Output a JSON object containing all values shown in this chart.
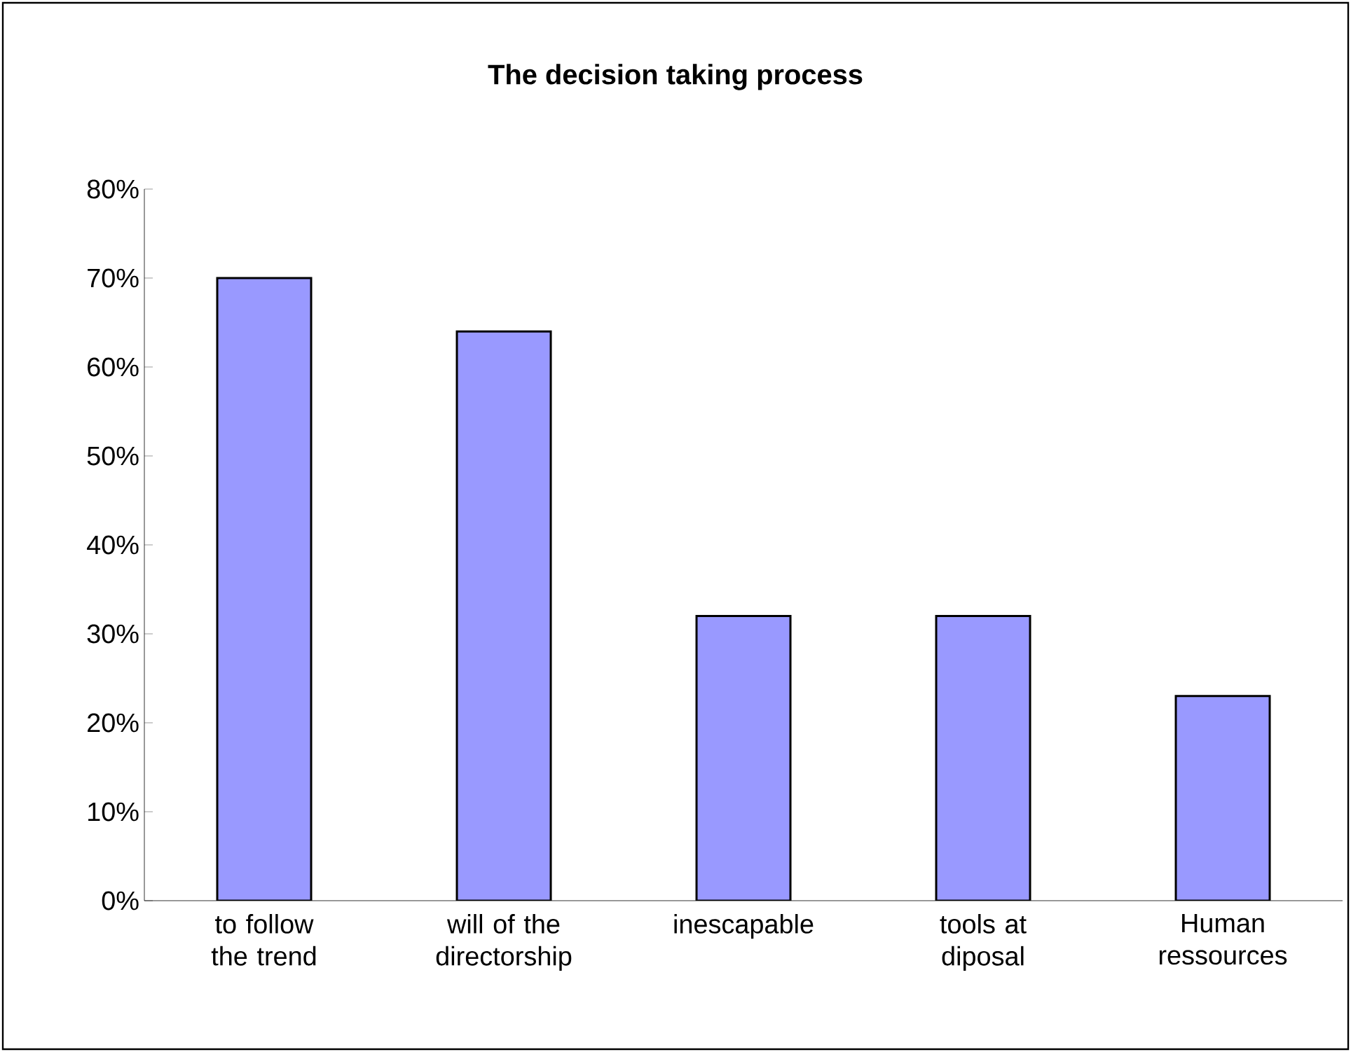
{
  "chart_data": {
    "type": "bar",
    "title": "The decision taking process",
    "categories": [
      "to follow the trend",
      "will of the directorship",
      "inescapable",
      "tools at diposal",
      "Human ressources"
    ],
    "values": [
      70,
      64,
      32,
      32,
      23
    ],
    "color": "#9999ff",
    "ylim": [
      0,
      80
    ],
    "yticks": [
      {
        "value": 0,
        "label": "0%"
      },
      {
        "value": 10,
        "label": "10%"
      },
      {
        "value": 20,
        "label": "20%"
      },
      {
        "value": 30,
        "label": "30%"
      },
      {
        "value": 40,
        "label": "40%"
      },
      {
        "value": 50,
        "label": "50%"
      },
      {
        "value": 60,
        "label": "60%"
      },
      {
        "value": 70,
        "label": "70%"
      },
      {
        "value": 80,
        "label": "80%"
      }
    ],
    "grid": false
  }
}
